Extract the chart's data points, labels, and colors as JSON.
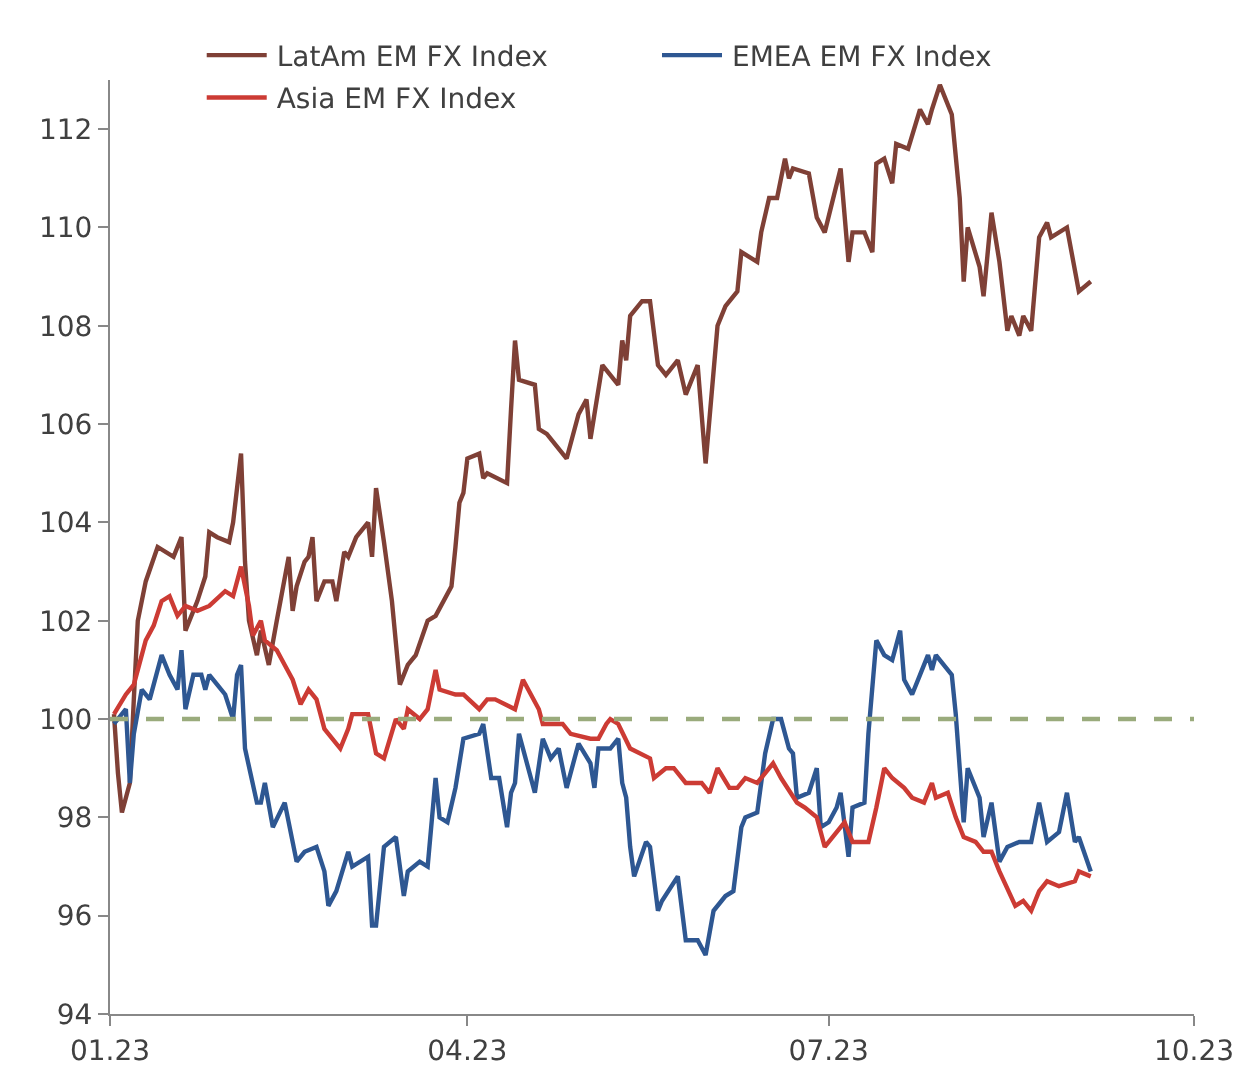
{
  "chart_data": {
    "type": "line",
    "legend": "top",
    "grid": false,
    "line_style": "solid",
    "marker": "none",
    "xlim": [
      "2023-01-01",
      "2023-10-01"
    ],
    "xticks": [
      {
        "value": "2023-01-01",
        "label": "01.23"
      },
      {
        "value": "2023-04-01",
        "label": "04.23"
      },
      {
        "value": "2023-07-01",
        "label": "07.23"
      },
      {
        "value": "2023-10-01",
        "label": "10.23"
      }
    ],
    "ylim": [
      94,
      113
    ],
    "yticks": [
      94,
      96,
      98,
      100,
      102,
      104,
      106,
      108,
      110,
      112
    ],
    "ref_lines": [
      {
        "axis": "y",
        "value": 100,
        "color": "#9aab7c",
        "line_style": "dashed"
      }
    ],
    "series": [
      {
        "name": "LatAm EM FX Index",
        "color": "#7f4036",
        "x": [
          "2023-01-02",
          "2023-01-03",
          "2023-01-04",
          "2023-01-06",
          "2023-01-07",
          "2023-01-08",
          "2023-01-10",
          "2023-01-13",
          "2023-01-17",
          "2023-01-19",
          "2023-01-20",
          "2023-01-23",
          "2023-01-25",
          "2023-01-26",
          "2023-01-28",
          "2023-01-31",
          "2023-02-01",
          "2023-02-03",
          "2023-02-04",
          "2023-02-05",
          "2023-02-07",
          "2023-02-08",
          "2023-02-10",
          "2023-02-12",
          "2023-02-15",
          "2023-02-16",
          "2023-02-17",
          "2023-02-19",
          "2023-02-20",
          "2023-02-21",
          "2023-02-22",
          "2023-02-24",
          "2023-02-26",
          "2023-02-27",
          "2023-03-01",
          "2023-03-02",
          "2023-03-04",
          "2023-03-07",
          "2023-03-08",
          "2023-03-09",
          "2023-03-11",
          "2023-03-13",
          "2023-03-15",
          "2023-03-17",
          "2023-03-19",
          "2023-03-22",
          "2023-03-24",
          "2023-03-28",
          "2023-03-29",
          "2023-03-30",
          "2023-03-31",
          "2023-04-01",
          "2023-04-04",
          "2023-04-05",
          "2023-04-06",
          "2023-04-11",
          "2023-04-12",
          "2023-04-13",
          "2023-04-14",
          "2023-04-18",
          "2023-04-19",
          "2023-04-21",
          "2023-04-26",
          "2023-04-29",
          "2023-05-01",
          "2023-05-02",
          "2023-05-03",
          "2023-05-05",
          "2023-05-09",
          "2023-05-10",
          "2023-05-11",
          "2023-05-12",
          "2023-05-15",
          "2023-05-17",
          "2023-05-19",
          "2023-05-21",
          "2023-05-22",
          "2023-05-24",
          "2023-05-26",
          "2023-05-29",
          "2023-05-31",
          "2023-06-03",
          "2023-06-05",
          "2023-06-08",
          "2023-06-09",
          "2023-06-13",
          "2023-06-14",
          "2023-06-16",
          "2023-06-18",
          "2023-06-20",
          "2023-06-21",
          "2023-06-22",
          "2023-06-26",
          "2023-06-28",
          "2023-06-30",
          "2023-07-04",
          "2023-07-06",
          "2023-07-07",
          "2023-07-10",
          "2023-07-12",
          "2023-07-13",
          "2023-07-15",
          "2023-07-17",
          "2023-07-18",
          "2023-07-21",
          "2023-07-24",
          "2023-07-26",
          "2023-07-27",
          "2023-07-29",
          "2023-08-01",
          "2023-08-03",
          "2023-08-04",
          "2023-08-05",
          "2023-08-08",
          "2023-08-09",
          "2023-08-11",
          "2023-08-13",
          "2023-08-15",
          "2023-08-16",
          "2023-08-18",
          "2023-08-19",
          "2023-08-21",
          "2023-08-23",
          "2023-08-25",
          "2023-08-26",
          "2023-08-30",
          "2023-09-02",
          "2023-09-05"
        ],
        "values": [
          100.1,
          98.9,
          98.1,
          98.7,
          100.4,
          102.0,
          102.8,
          103.5,
          103.3,
          103.7,
          101.8,
          102.4,
          102.9,
          103.8,
          103.7,
          103.6,
          104.0,
          105.4,
          103.2,
          102.0,
          101.3,
          101.8,
          101.1,
          102.0,
          103.3,
          102.2,
          102.7,
          103.2,
          103.3,
          103.7,
          102.4,
          102.8,
          102.8,
          102.4,
          103.4,
          103.3,
          103.7,
          104.0,
          103.3,
          104.7,
          103.6,
          102.4,
          100.7,
          101.1,
          101.3,
          102.0,
          102.1,
          102.7,
          103.5,
          104.4,
          104.6,
          105.3,
          105.4,
          104.9,
          105.0,
          104.8,
          106.3,
          107.7,
          106.9,
          106.8,
          105.9,
          105.8,
          105.3,
          106.2,
          106.5,
          105.7,
          106.2,
          107.2,
          106.8,
          107.7,
          107.3,
          108.2,
          108.5,
          108.5,
          107.2,
          107.0,
          107.1,
          107.3,
          106.6,
          107.2,
          105.2,
          108.0,
          108.4,
          108.7,
          109.5,
          109.3,
          109.9,
          110.6,
          110.6,
          111.4,
          111.0,
          111.2,
          111.1,
          110.2,
          109.9,
          111.2,
          109.3,
          109.9,
          109.9,
          109.5,
          111.3,
          111.4,
          110.9,
          111.7,
          111.6,
          112.4,
          112.1,
          112.4,
          112.9,
          112.3,
          110.6,
          108.9,
          110.0,
          109.2,
          108.6,
          110.3,
          109.3,
          107.9,
          108.2,
          107.8,
          108.2,
          107.9,
          109.8,
          110.1,
          109.8,
          110.0,
          108.7,
          108.9
        ]
      },
      {
        "name": "EMEA EM FX Index",
        "color": "#2e5792",
        "x": [
          "2023-01-02",
          "2023-01-05",
          "2023-01-06",
          "2023-01-07",
          "2023-01-09",
          "2023-01-11",
          "2023-01-14",
          "2023-01-16",
          "2023-01-18",
          "2023-01-19",
          "2023-01-20",
          "2023-01-22",
          "2023-01-24",
          "2023-01-25",
          "2023-01-26",
          "2023-01-28",
          "2023-01-30",
          "2023-02-01",
          "2023-02-02",
          "2023-02-03",
          "2023-02-04",
          "2023-02-07",
          "2023-02-08",
          "2023-02-09",
          "2023-02-11",
          "2023-02-14",
          "2023-02-17",
          "2023-02-19",
          "2023-02-22",
          "2023-02-24",
          "2023-02-25",
          "2023-02-27",
          "2023-03-02",
          "2023-03-03",
          "2023-03-07",
          "2023-03-08",
          "2023-03-09",
          "2023-03-11",
          "2023-03-14",
          "2023-03-16",
          "2023-03-17",
          "2023-03-20",
          "2023-03-22",
          "2023-03-24",
          "2023-03-25",
          "2023-03-27",
          "2023-03-29",
          "2023-03-31",
          "2023-04-04",
          "2023-04-05",
          "2023-04-07",
          "2023-04-09",
          "2023-04-11",
          "2023-04-12",
          "2023-04-13",
          "2023-04-14",
          "2023-04-18",
          "2023-04-20",
          "2023-04-22",
          "2023-04-24",
          "2023-04-26",
          "2023-04-29",
          "2023-05-02",
          "2023-05-03",
          "2023-05-04",
          "2023-05-07",
          "2023-05-09",
          "2023-05-10",
          "2023-05-11",
          "2023-05-12",
          "2023-05-13",
          "2023-05-16",
          "2023-05-17",
          "2023-05-19",
          "2023-05-20",
          "2023-05-24",
          "2023-05-26",
          "2023-05-29",
          "2023-05-31",
          "2023-06-02",
          "2023-06-05",
          "2023-06-07",
          "2023-06-09",
          "2023-06-10",
          "2023-06-13",
          "2023-06-15",
          "2023-06-17",
          "2023-06-19",
          "2023-06-21",
          "2023-06-22",
          "2023-06-23",
          "2023-06-26",
          "2023-06-28",
          "2023-06-29",
          "2023-07-01",
          "2023-07-03",
          "2023-07-04",
          "2023-07-06",
          "2023-07-07",
          "2023-07-10",
          "2023-07-11",
          "2023-07-13",
          "2023-07-15",
          "2023-07-17",
          "2023-07-19",
          "2023-07-20",
          "2023-07-22",
          "2023-07-24",
          "2023-07-26",
          "2023-07-27",
          "2023-07-28",
          "2023-08-01",
          "2023-08-02",
          "2023-08-03",
          "2023-08-04",
          "2023-08-05",
          "2023-08-08",
          "2023-08-09",
          "2023-08-11",
          "2023-08-13",
          "2023-08-15",
          "2023-08-18",
          "2023-08-21",
          "2023-08-23",
          "2023-08-25",
          "2023-08-28",
          "2023-08-30",
          "2023-09-01",
          "2023-09-02",
          "2023-09-05"
        ],
        "values": [
          99.9,
          100.2,
          98.7,
          99.7,
          100.6,
          100.4,
          101.3,
          100.9,
          100.6,
          101.4,
          100.2,
          100.9,
          100.9,
          100.6,
          100.9,
          100.7,
          100.5,
          100.0,
          100.9,
          101.1,
          99.4,
          98.3,
          98.3,
          98.7,
          97.8,
          98.3,
          97.1,
          97.3,
          97.4,
          96.9,
          96.2,
          96.5,
          97.3,
          97.0,
          97.2,
          95.8,
          95.8,
          97.4,
          97.6,
          96.4,
          96.9,
          97.1,
          97.0,
          98.8,
          98.0,
          97.9,
          98.6,
          99.6,
          99.7,
          99.9,
          98.8,
          98.8,
          97.8,
          98.5,
          98.7,
          99.7,
          98.5,
          99.6,
          99.2,
          99.4,
          98.6,
          99.5,
          99.1,
          98.6,
          99.4,
          99.4,
          99.6,
          98.7,
          98.4,
          97.4,
          96.8,
          97.5,
          97.4,
          96.1,
          96.3,
          96.8,
          95.5,
          95.5,
          95.2,
          96.1,
          96.4,
          96.5,
          97.8,
          98.0,
          98.1,
          99.3,
          100.0,
          100.0,
          99.4,
          99.3,
          98.4,
          98.5,
          99.0,
          97.8,
          97.9,
          98.2,
          98.5,
          97.2,
          98.2,
          98.3,
          99.7,
          101.6,
          101.3,
          101.2,
          101.8,
          100.8,
          100.5,
          100.9,
          101.3,
          101.0,
          101.3,
          100.9,
          100.1,
          99.0,
          97.9,
          99.0,
          98.4,
          97.6,
          98.3,
          97.1,
          97.4,
          97.5,
          97.5,
          98.3,
          97.5,
          97.7,
          98.5,
          97.5,
          97.6,
          96.9
        ]
      },
      {
        "name": "Asia EM FX Index",
        "color": "#cc3b34",
        "x": [
          "2023-01-02",
          "2023-01-05",
          "2023-01-07",
          "2023-01-10",
          "2023-01-12",
          "2023-01-14",
          "2023-01-16",
          "2023-01-18",
          "2023-01-20",
          "2023-01-23",
          "2023-01-26",
          "2023-01-30",
          "2023-02-01",
          "2023-02-03",
          "2023-02-05",
          "2023-02-06",
          "2023-02-08",
          "2023-02-09",
          "2023-02-12",
          "2023-02-14",
          "2023-02-16",
          "2023-02-18",
          "2023-02-20",
          "2023-02-22",
          "2023-02-24",
          "2023-02-28",
          "2023-03-02",
          "2023-03-03",
          "2023-03-07",
          "2023-03-09",
          "2023-03-11",
          "2023-03-14",
          "2023-03-16",
          "2023-03-17",
          "2023-03-20",
          "2023-03-22",
          "2023-03-24",
          "2023-03-25",
          "2023-03-29",
          "2023-03-31",
          "2023-04-04",
          "2023-04-06",
          "2023-04-08",
          "2023-04-13",
          "2023-04-15",
          "2023-04-17",
          "2023-04-19",
          "2023-04-20",
          "2023-04-25",
          "2023-04-27",
          "2023-05-02",
          "2023-05-04",
          "2023-05-06",
          "2023-05-07",
          "2023-05-09",
          "2023-05-12",
          "2023-05-17",
          "2023-05-18",
          "2023-05-21",
          "2023-05-23",
          "2023-05-26",
          "2023-05-27",
          "2023-05-30",
          "2023-06-01",
          "2023-06-03",
          "2023-06-06",
          "2023-06-08",
          "2023-06-10",
          "2023-06-13",
          "2023-06-17",
          "2023-06-19",
          "2023-06-23",
          "2023-06-25",
          "2023-06-28",
          "2023-06-30",
          "2023-07-03",
          "2023-07-05",
          "2023-07-07",
          "2023-07-11",
          "2023-07-13",
          "2023-07-15",
          "2023-07-17",
          "2023-07-20",
          "2023-07-22",
          "2023-07-25",
          "2023-07-27",
          "2023-07-28",
          "2023-07-31",
          "2023-08-02",
          "2023-08-04",
          "2023-08-07",
          "2023-08-09",
          "2023-08-11",
          "2023-08-13",
          "2023-08-17",
          "2023-08-19",
          "2023-08-21",
          "2023-08-23",
          "2023-08-25",
          "2023-08-28",
          "2023-09-01",
          "2023-09-02",
          "2023-09-05"
        ],
        "values": [
          100.1,
          100.5,
          100.7,
          101.6,
          101.9,
          102.4,
          102.5,
          102.1,
          102.3,
          102.2,
          102.3,
          102.6,
          102.5,
          103.1,
          102.3,
          101.7,
          102.0,
          101.6,
          101.4,
          101.1,
          100.8,
          100.3,
          100.6,
          100.4,
          99.8,
          99.4,
          99.8,
          100.1,
          100.1,
          99.3,
          99.2,
          100.0,
          99.8,
          100.2,
          100.0,
          100.2,
          101.0,
          100.6,
          100.5,
          100.5,
          100.2,
          100.4,
          100.4,
          100.2,
          100.8,
          100.5,
          100.2,
          99.9,
          99.9,
          99.7,
          99.6,
          99.6,
          99.9,
          100.0,
          99.9,
          99.4,
          99.2,
          98.8,
          99.0,
          99.0,
          98.7,
          98.7,
          98.7,
          98.5,
          99.0,
          98.6,
          98.6,
          98.8,
          98.7,
          99.1,
          98.8,
          98.3,
          98.2,
          98.0,
          97.4,
          97.7,
          97.9,
          97.5,
          97.5,
          98.2,
          99.0,
          98.8,
          98.6,
          98.4,
          98.3,
          98.7,
          98.4,
          98.5,
          98.0,
          97.6,
          97.5,
          97.3,
          97.3,
          96.9,
          96.2,
          96.3,
          96.1,
          96.5,
          96.7,
          96.6,
          96.7,
          96.9,
          96.8
        ]
      }
    ]
  }
}
